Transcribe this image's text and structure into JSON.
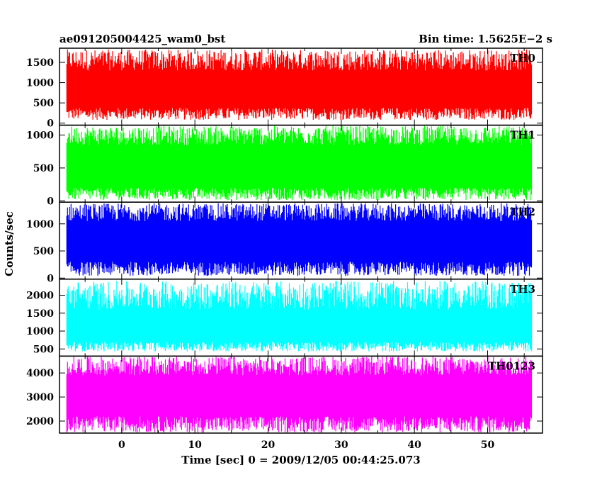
{
  "chart_data": {
    "type": "line",
    "title": "ae091205004425_wam0_bst",
    "subtitle": "Bin time: 1.5625E−2 s",
    "xlabel": "Time [sec] 0 = 2009/12/05 00:44:25.073",
    "ylabel": "Counts/sec",
    "xlim": [
      -8.5,
      57.5
    ],
    "data_xrange": [
      -7.5,
      56
    ],
    "xticks": [
      0,
      10,
      20,
      30,
      40,
      50
    ],
    "grid": false,
    "series": [
      {
        "name": "TH0",
        "color": "#ff0000",
        "ylim": [
          -50,
          1850
        ],
        "yticks": [
          0,
          500,
          1000,
          1500
        ],
        "mean": 800,
        "low": [
          80,
          380
        ],
        "high": [
          1300,
          1820
        ]
      },
      {
        "name": "TH1",
        "color": "#00ff00",
        "ylim": [
          -20,
          1150
        ],
        "yticks": [
          0,
          500,
          1000
        ],
        "mean": 600,
        "low": [
          10,
          200
        ],
        "high": [
          850,
          1140
        ]
      },
      {
        "name": "TH2",
        "color": "#0000ff",
        "ylim": [
          -20,
          1400
        ],
        "yticks": [
          0,
          500,
          1000
        ],
        "mean": 700,
        "low": [
          40,
          300
        ],
        "high": [
          1050,
          1380
        ]
      },
      {
        "name": "TH3",
        "color": "#00ffff",
        "ylim": [
          300,
          2450
        ],
        "yticks": [
          500,
          1000,
          1500,
          2000
        ],
        "mean": 1150,
        "low": [
          430,
          700
        ],
        "high": [
          1600,
          2400
        ]
      },
      {
        "name": "TH0123",
        "color": "#ff00ff",
        "ylim": [
          1500,
          4700
        ],
        "yticks": [
          2000,
          3000,
          4000
        ],
        "mean": 3100,
        "low": [
          1520,
          2200
        ],
        "high": [
          3900,
          4680
        ]
      }
    ]
  }
}
